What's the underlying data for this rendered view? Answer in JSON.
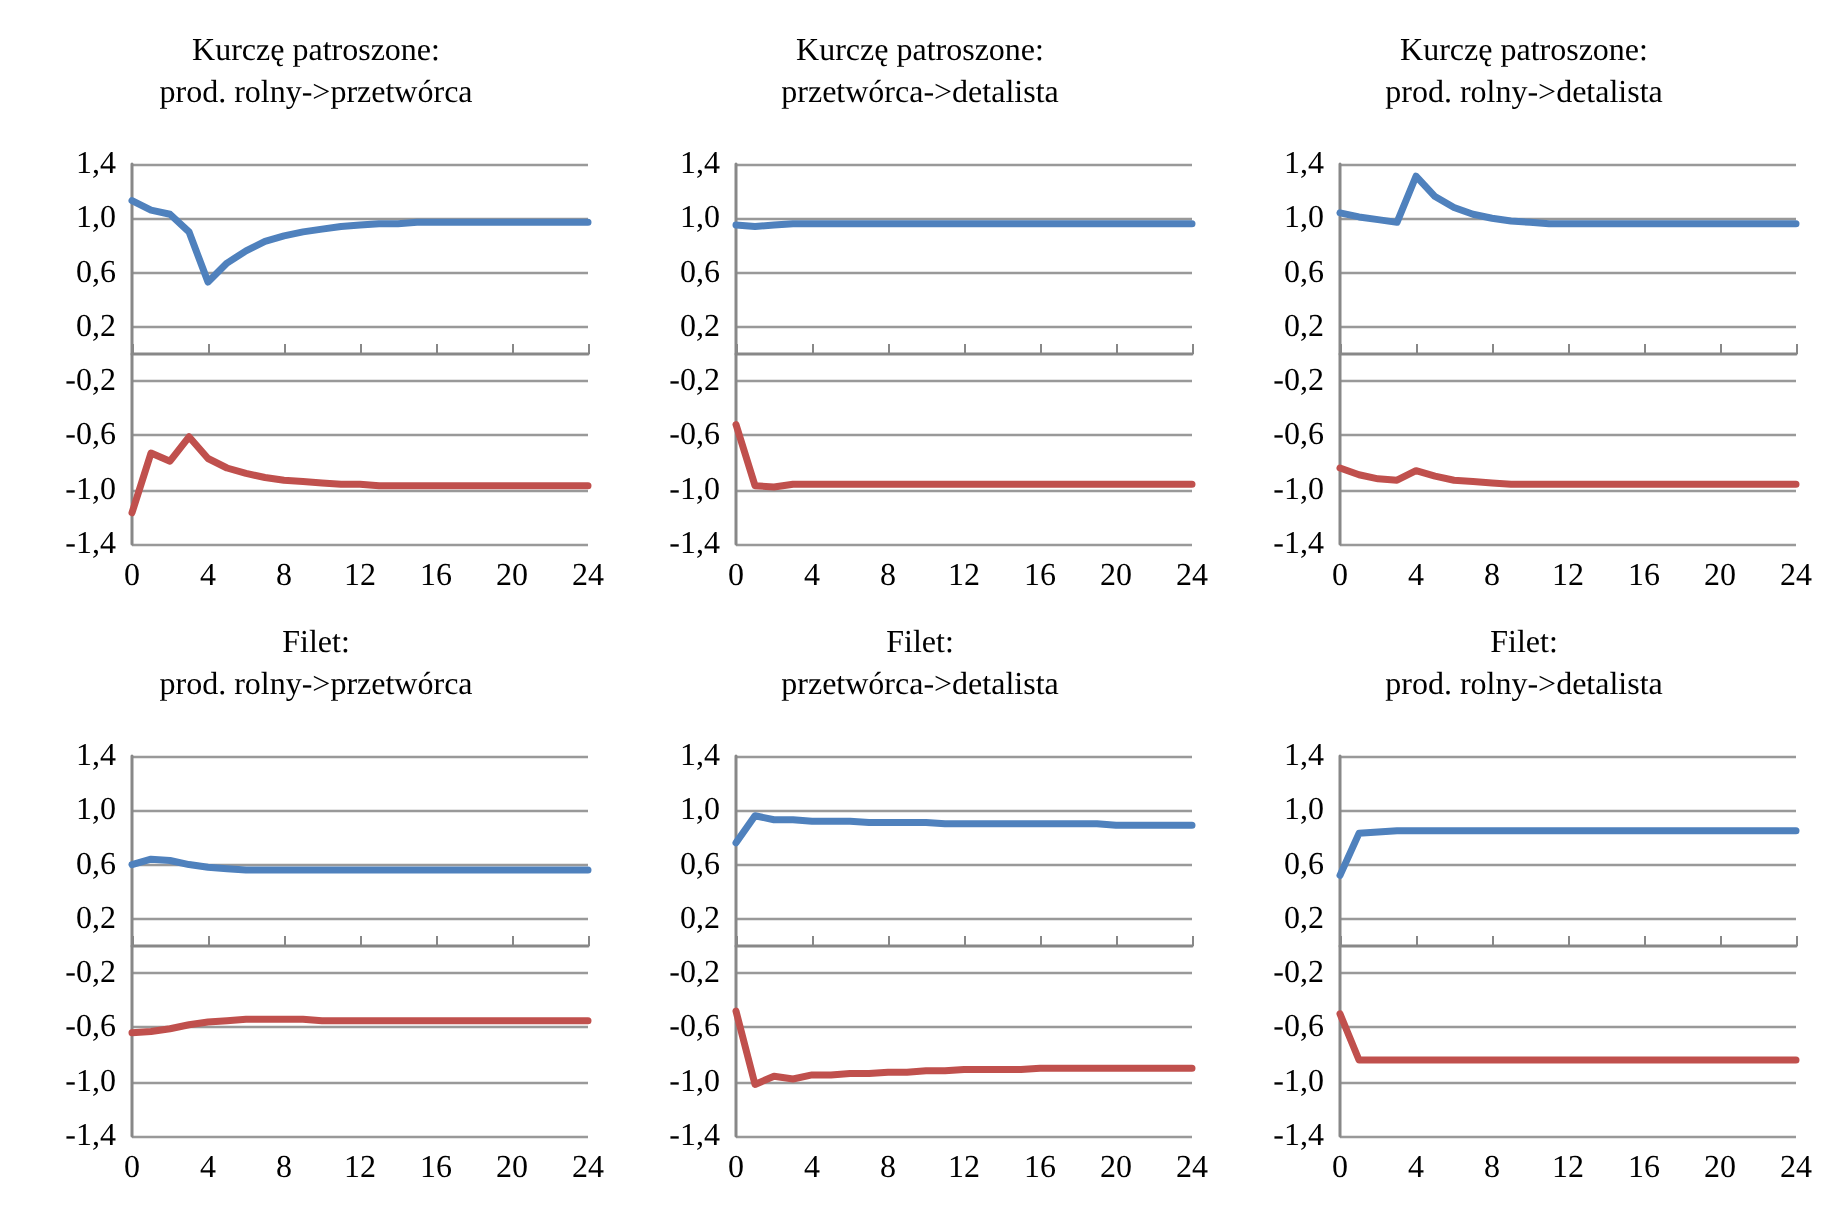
{
  "chart_data": [
    {
      "type": "line",
      "title": "Kurczę patroszone:\nprod. rolny->przetwórca",
      "x": [
        0,
        1,
        2,
        3,
        4,
        5,
        6,
        7,
        8,
        9,
        10,
        11,
        12,
        13,
        14,
        15,
        16,
        17,
        18,
        19,
        20,
        21,
        22,
        23,
        24
      ],
      "xlim": [
        0,
        24
      ],
      "xticks": [
        0,
        4,
        8,
        12,
        16,
        20,
        24
      ],
      "ylim": [
        -1.4,
        1.4
      ],
      "yticks": [
        {
          "value": -1.4,
          "label": "-1,4"
        },
        {
          "value": -1.0,
          "label": "-1,0"
        },
        {
          "value": -0.6,
          "label": "-0,6"
        },
        {
          "value": -0.2,
          "label": "-0,2"
        },
        {
          "value": 0.2,
          "label": "0,2"
        },
        {
          "value": 0.6,
          "label": "0,6"
        },
        {
          "value": 1.0,
          "label": "1,0"
        },
        {
          "value": 1.4,
          "label": "1,4"
        }
      ],
      "grid": "y",
      "marker": "none",
      "series": [
        {
          "color": "#4f81bd",
          "values": [
            1.13,
            1.06,
            1.03,
            0.9,
            0.53,
            0.67,
            0.76,
            0.83,
            0.87,
            0.9,
            0.92,
            0.94,
            0.95,
            0.96,
            0.96,
            0.97,
            0.97,
            0.97,
            0.97,
            0.97,
            0.97,
            0.97,
            0.97,
            0.97,
            0.97
          ]
        },
        {
          "color": "#c0504d",
          "values": [
            -1.17,
            -0.73,
            -0.79,
            -0.61,
            -0.77,
            -0.84,
            -0.88,
            -0.91,
            -0.93,
            -0.94,
            -0.95,
            -0.96,
            -0.96,
            -0.97,
            -0.97,
            -0.97,
            -0.97,
            -0.97,
            -0.97,
            -0.97,
            -0.97,
            -0.97,
            -0.97,
            -0.97,
            -0.97
          ]
        }
      ]
    },
    {
      "type": "line",
      "title": "Kurczę patroszone:\nprzetwórca->detalista",
      "x": [
        0,
        1,
        2,
        3,
        4,
        5,
        6,
        7,
        8,
        9,
        10,
        11,
        12,
        13,
        14,
        15,
        16,
        17,
        18,
        19,
        20,
        21,
        22,
        23,
        24
      ],
      "xlim": [
        0,
        24
      ],
      "xticks": [
        0,
        4,
        8,
        12,
        16,
        20,
        24
      ],
      "ylim": [
        -1.4,
        1.4
      ],
      "yticks": [
        {
          "value": -1.4,
          "label": "-1,4"
        },
        {
          "value": -1.0,
          "label": "-1,0"
        },
        {
          "value": -0.6,
          "label": "-0,6"
        },
        {
          "value": -0.2,
          "label": "-0,2"
        },
        {
          "value": 0.2,
          "label": "0,2"
        },
        {
          "value": 0.6,
          "label": "0,6"
        },
        {
          "value": 1.0,
          "label": "1,0"
        },
        {
          "value": 1.4,
          "label": "1,4"
        }
      ],
      "grid": "y",
      "marker": "none",
      "series": [
        {
          "color": "#4f81bd",
          "values": [
            0.95,
            0.94,
            0.95,
            0.96,
            0.96,
            0.96,
            0.96,
            0.96,
            0.96,
            0.96,
            0.96,
            0.96,
            0.96,
            0.96,
            0.96,
            0.96,
            0.96,
            0.96,
            0.96,
            0.96,
            0.96,
            0.96,
            0.96,
            0.96,
            0.96
          ]
        },
        {
          "color": "#c0504d",
          "values": [
            -0.52,
            -0.97,
            -0.98,
            -0.96,
            -0.96,
            -0.96,
            -0.96,
            -0.96,
            -0.96,
            -0.96,
            -0.96,
            -0.96,
            -0.96,
            -0.96,
            -0.96,
            -0.96,
            -0.96,
            -0.96,
            -0.96,
            -0.96,
            -0.96,
            -0.96,
            -0.96,
            -0.96,
            -0.96
          ]
        }
      ]
    },
    {
      "type": "line",
      "title": "Kurczę patroszone:\nprod. rolny->detalista",
      "x": [
        0,
        1,
        2,
        3,
        4,
        5,
        6,
        7,
        8,
        9,
        10,
        11,
        12,
        13,
        14,
        15,
        16,
        17,
        18,
        19,
        20,
        21,
        22,
        23,
        24
      ],
      "xlim": [
        0,
        24
      ],
      "xticks": [
        0,
        4,
        8,
        12,
        16,
        20,
        24
      ],
      "ylim": [
        -1.4,
        1.4
      ],
      "yticks": [
        {
          "value": -1.4,
          "label": "-1,4"
        },
        {
          "value": -1.0,
          "label": "-1,0"
        },
        {
          "value": -0.6,
          "label": "-0,6"
        },
        {
          "value": -0.2,
          "label": "-0,2"
        },
        {
          "value": 0.2,
          "label": "0,2"
        },
        {
          "value": 0.6,
          "label": "0,6"
        },
        {
          "value": 1.0,
          "label": "1,0"
        },
        {
          "value": 1.4,
          "label": "1,4"
        }
      ],
      "grid": "y",
      "marker": "none",
      "series": [
        {
          "color": "#4f81bd",
          "values": [
            1.04,
            1.01,
            0.99,
            0.97,
            1.31,
            1.16,
            1.08,
            1.03,
            1.0,
            0.98,
            0.97,
            0.96,
            0.96,
            0.96,
            0.96,
            0.96,
            0.96,
            0.96,
            0.96,
            0.96,
            0.96,
            0.96,
            0.96,
            0.96,
            0.96
          ]
        },
        {
          "color": "#c0504d",
          "values": [
            -0.84,
            -0.89,
            -0.92,
            -0.93,
            -0.86,
            -0.9,
            -0.93,
            -0.94,
            -0.95,
            -0.96,
            -0.96,
            -0.96,
            -0.96,
            -0.96,
            -0.96,
            -0.96,
            -0.96,
            -0.96,
            -0.96,
            -0.96,
            -0.96,
            -0.96,
            -0.96,
            -0.96,
            -0.96
          ]
        }
      ]
    },
    {
      "type": "line",
      "title": "Filet:\nprod. rolny->przetwórca",
      "x": [
        0,
        1,
        2,
        3,
        4,
        5,
        6,
        7,
        8,
        9,
        10,
        11,
        12,
        13,
        14,
        15,
        16,
        17,
        18,
        19,
        20,
        21,
        22,
        23,
        24
      ],
      "xlim": [
        0,
        24
      ],
      "xticks": [
        0,
        4,
        8,
        12,
        16,
        20,
        24
      ],
      "ylim": [
        -1.4,
        1.4
      ],
      "yticks": [
        {
          "value": -1.4,
          "label": "-1,4"
        },
        {
          "value": -1.0,
          "label": "-1,0"
        },
        {
          "value": -0.6,
          "label": "-0,6"
        },
        {
          "value": -0.2,
          "label": "-0,2"
        },
        {
          "value": 0.2,
          "label": "0,2"
        },
        {
          "value": 0.6,
          "label": "0,6"
        },
        {
          "value": 1.0,
          "label": "1,0"
        },
        {
          "value": 1.4,
          "label": "1,4"
        }
      ],
      "grid": "y",
      "marker": "none",
      "series": [
        {
          "color": "#4f81bd",
          "values": [
            0.6,
            0.64,
            0.63,
            0.6,
            0.58,
            0.57,
            0.56,
            0.56,
            0.56,
            0.56,
            0.56,
            0.56,
            0.56,
            0.56,
            0.56,
            0.56,
            0.56,
            0.56,
            0.56,
            0.56,
            0.56,
            0.56,
            0.56,
            0.56,
            0.56
          ]
        },
        {
          "color": "#c0504d",
          "values": [
            -0.64,
            -0.63,
            -0.61,
            -0.58,
            -0.56,
            -0.55,
            -0.54,
            -0.54,
            -0.54,
            -0.54,
            -0.55,
            -0.55,
            -0.55,
            -0.55,
            -0.55,
            -0.55,
            -0.55,
            -0.55,
            -0.55,
            -0.55,
            -0.55,
            -0.55,
            -0.55,
            -0.55,
            -0.55
          ]
        }
      ]
    },
    {
      "type": "line",
      "title": "Filet:\nprzetwórca->detalista",
      "x": [
        0,
        1,
        2,
        3,
        4,
        5,
        6,
        7,
        8,
        9,
        10,
        11,
        12,
        13,
        14,
        15,
        16,
        17,
        18,
        19,
        20,
        21,
        22,
        23,
        24
      ],
      "xlim": [
        0,
        24
      ],
      "xticks": [
        0,
        4,
        8,
        12,
        16,
        20,
        24
      ],
      "ylim": [
        -1.4,
        1.4
      ],
      "yticks": [
        {
          "value": -1.4,
          "label": "-1,4"
        },
        {
          "value": -1.0,
          "label": "-1,0"
        },
        {
          "value": -0.6,
          "label": "-0,6"
        },
        {
          "value": -0.2,
          "label": "-0,2"
        },
        {
          "value": 0.2,
          "label": "0,2"
        },
        {
          "value": 0.6,
          "label": "0,6"
        },
        {
          "value": 1.0,
          "label": "1,0"
        },
        {
          "value": 1.4,
          "label": "1,4"
        }
      ],
      "grid": "y",
      "marker": "none",
      "series": [
        {
          "color": "#4f81bd",
          "values": [
            0.76,
            0.96,
            0.93,
            0.93,
            0.92,
            0.92,
            0.92,
            0.91,
            0.91,
            0.91,
            0.91,
            0.9,
            0.9,
            0.9,
            0.9,
            0.9,
            0.9,
            0.9,
            0.9,
            0.9,
            0.89,
            0.89,
            0.89,
            0.89,
            0.89
          ]
        },
        {
          "color": "#c0504d",
          "values": [
            -0.48,
            -1.02,
            -0.96,
            -0.98,
            -0.95,
            -0.95,
            -0.94,
            -0.94,
            -0.93,
            -0.93,
            -0.92,
            -0.92,
            -0.91,
            -0.91,
            -0.91,
            -0.91,
            -0.9,
            -0.9,
            -0.9,
            -0.9,
            -0.9,
            -0.9,
            -0.9,
            -0.9,
            -0.9
          ]
        }
      ]
    },
    {
      "type": "line",
      "title": "Filet:\nprod. rolny->detalista",
      "x": [
        0,
        1,
        2,
        3,
        4,
        5,
        6,
        7,
        8,
        9,
        10,
        11,
        12,
        13,
        14,
        15,
        16,
        17,
        18,
        19,
        20,
        21,
        22,
        23,
        24
      ],
      "xlim": [
        0,
        24
      ],
      "xticks": [
        0,
        4,
        8,
        12,
        16,
        20,
        24
      ],
      "ylim": [
        -1.4,
        1.4
      ],
      "yticks": [
        {
          "value": -1.4,
          "label": "-1,4"
        },
        {
          "value": -1.0,
          "label": "-1,0"
        },
        {
          "value": -0.6,
          "label": "-0,6"
        },
        {
          "value": -0.2,
          "label": "-0,2"
        },
        {
          "value": 0.2,
          "label": "0,2"
        },
        {
          "value": 0.6,
          "label": "0,6"
        },
        {
          "value": 1.0,
          "label": "1,0"
        },
        {
          "value": 1.4,
          "label": "1,4"
        }
      ],
      "grid": "y",
      "marker": "none",
      "series": [
        {
          "color": "#4f81bd",
          "values": [
            0.52,
            0.83,
            0.84,
            0.85,
            0.85,
            0.85,
            0.85,
            0.85,
            0.85,
            0.85,
            0.85,
            0.85,
            0.85,
            0.85,
            0.85,
            0.85,
            0.85,
            0.85,
            0.85,
            0.85,
            0.85,
            0.85,
            0.85,
            0.85,
            0.85
          ]
        },
        {
          "color": "#c0504d",
          "values": [
            -0.5,
            -0.84,
            -0.84,
            -0.84,
            -0.84,
            -0.84,
            -0.84,
            -0.84,
            -0.84,
            -0.84,
            -0.84,
            -0.84,
            -0.84,
            -0.84,
            -0.84,
            -0.84,
            -0.84,
            -0.84,
            -0.84,
            -0.84,
            -0.84,
            -0.84,
            -0.84,
            -0.84,
            -0.84
          ]
        }
      ]
    }
  ]
}
